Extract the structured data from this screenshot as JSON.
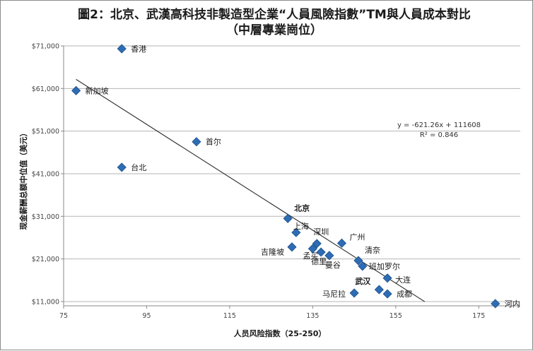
{
  "chart_data": {
    "type": "scatter",
    "title": "圖2：北京、武漢高科技非製造型企業“人員風險指數”TM與人員成本對比",
    "subtitle": "（中層專業崗位）",
    "xlabel": "人员风险指数（25-250）",
    "ylabel": "现金薪酬总额中位值（美元）",
    "xlim": [
      75,
      185
    ],
    "ylim": [
      10000,
      71000
    ],
    "x_ticks": [
      {
        "value": 75,
        "label": "75"
      },
      {
        "value": 95,
        "label": "95"
      },
      {
        "value": 115,
        "label": "115"
      },
      {
        "value": 135,
        "label": "135"
      },
      {
        "value": 155,
        "label": "155"
      },
      {
        "value": 175,
        "label": "175"
      }
    ],
    "y_ticks": [
      {
        "value": 11000,
        "label": "$11,000"
      },
      {
        "value": 21000,
        "label": "$21,000"
      },
      {
        "value": 31000,
        "label": "$31,000"
      },
      {
        "value": 41000,
        "label": "$41,000"
      },
      {
        "value": 51000,
        "label": "$51,000"
      },
      {
        "value": 61000,
        "label": "$61,000"
      },
      {
        "value": 71000,
        "label": "$71,000"
      }
    ],
    "grid": true,
    "marker_color": "#2e6db4",
    "trendline": {
      "slope": -621.26,
      "intercept": 111608,
      "x_range": [
        78,
        162
      ]
    },
    "equation": "y = -621.26x + 111608",
    "r_squared": "R² = 0.846",
    "points": [
      {
        "label": "香港",
        "x": 89,
        "y": 75000,
        "bold": false
      },
      {
        "label": "新加坡",
        "x": 78,
        "y": 60500,
        "bold": false
      },
      {
        "label": "首尔",
        "x": 107,
        "y": 48500,
        "bold": false
      },
      {
        "label": "台北",
        "x": 89,
        "y": 42500,
        "bold": false
      },
      {
        "label": "北京",
        "x": 129,
        "y": 30500,
        "bold": true
      },
      {
        "label": "上海",
        "x": 131,
        "y": 27200,
        "bold": false
      },
      {
        "label": "深圳",
        "x": 136,
        "y": 24600,
        "bold": false
      },
      {
        "label": "吉隆坡",
        "x": 130,
        "y": 23800,
        "bold": false
      },
      {
        "label": "孟买",
        "x": 135,
        "y": 23400,
        "bold": false
      },
      {
        "label": "德里",
        "x": 137,
        "y": 22600,
        "bold": false
      },
      {
        "label": "曼谷",
        "x": 139,
        "y": 21800,
        "bold": false
      },
      {
        "label": "广州",
        "x": 142,
        "y": 24700,
        "bold": false
      },
      {
        "label": "清奈",
        "x": 146,
        "y": 20600,
        "bold": false
      },
      {
        "label": "班加罗尔",
        "x": 147,
        "y": 19300,
        "bold": false
      },
      {
        "label": "大连",
        "x": 153,
        "y": 16500,
        "bold": false
      },
      {
        "label": "武汉",
        "x": 151,
        "y": 13800,
        "bold": true
      },
      {
        "label": "成都",
        "x": 153,
        "y": 12800,
        "bold": false
      },
      {
        "label": "马尼拉",
        "x": 145,
        "y": 13000,
        "bold": false
      },
      {
        "label": "河内",
        "x": 179,
        "y": 10500,
        "bold": false
      }
    ]
  }
}
